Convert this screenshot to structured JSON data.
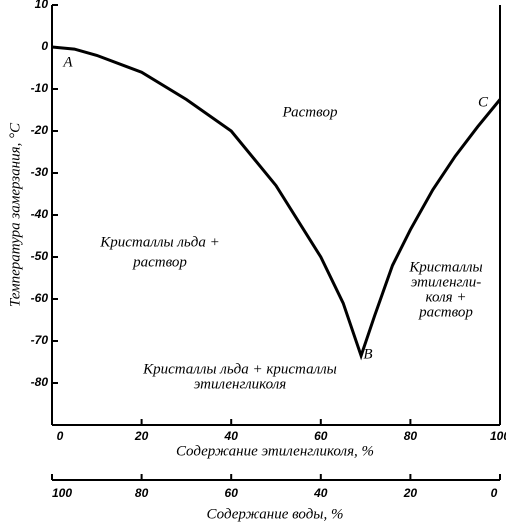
{
  "chart_data": {
    "type": "line",
    "x_label": "Содержание этиленгликоля, %",
    "y_label": "Температура замерзания, °С",
    "x2_label": "Содержание воды, %",
    "x": [
      0,
      5,
      10,
      20,
      30,
      40,
      50,
      60,
      65,
      69,
      72,
      76,
      80,
      85,
      90,
      95,
      100
    ],
    "values": [
      0,
      -0.5,
      -2,
      -6,
      -12.5,
      -20,
      -33,
      -50,
      -61,
      -73.5,
      -64,
      -52,
      -43.5,
      -34,
      -26,
      -19,
      -12.5
    ],
    "color": "#000000",
    "xlim": [
      0,
      100
    ],
    "xticks": [
      0,
      20,
      40,
      60,
      80,
      100
    ],
    "x2lim": [
      100,
      0
    ],
    "x2ticks": [
      100,
      80,
      60,
      40,
      20,
      0
    ],
    "ylim": [
      -90,
      10
    ],
    "yticks": [
      10,
      0,
      -10,
      -20,
      -30,
      -40,
      -50,
      -60,
      -70,
      -80
    ],
    "grid": false,
    "annotations": [
      {
        "lines": [
          "Раствор"
        ]
      },
      {
        "lines": [
          "Кристаллы  льда +",
          "раствор"
        ]
      },
      {
        "lines": [
          "Кристаллы",
          "этиленгли-",
          "коля +",
          "раствор"
        ]
      },
      {
        "lines": [
          "Кристаллы  льда + кристаллы",
          "этиленгликоля"
        ]
      },
      {
        "lines": [
          "A"
        ]
      },
      {
        "lines": [
          "B"
        ]
      },
      {
        "lines": [
          "C"
        ]
      }
    ]
  }
}
